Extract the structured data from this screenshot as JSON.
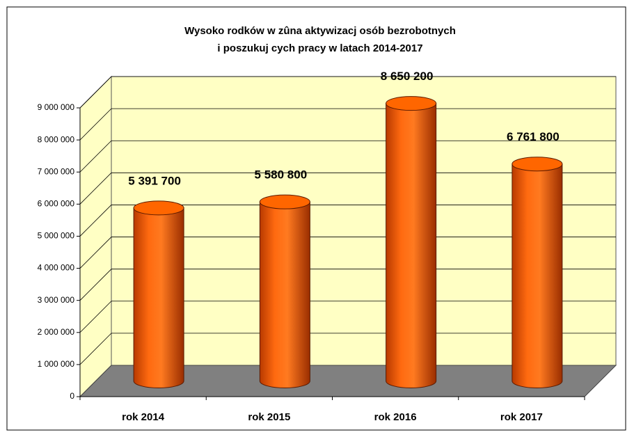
{
  "chart_data": {
    "type": "bar3d",
    "title": [
      "Wysoko       rodków w zûna aktywizacj   osób bezrobotnych",
      "i poszukuj  cych pracy w latach 2014-2017"
    ],
    "categories": [
      "rok 2014",
      "rok 2015",
      "rok 2016",
      "rok 2017"
    ],
    "values": [
      5391700,
      5580800,
      8650200,
      6761800
    ],
    "value_labels": [
      "5 391 700",
      "5 580 800",
      "8 650 200",
      "6 761 800"
    ],
    "color": "#ff6600",
    "ylim": [
      0,
      9000000
    ],
    "yticks": [
      0,
      {
        "value": 1000000,
        "label": "1 000 000"
      },
      {
        "value": 2000000,
        "label": "2 000 000"
      },
      {
        "value": 3000000,
        "label": "3 000 000"
      },
      {
        "value": 4000000,
        "label": "4 000 000"
      },
      {
        "value": 5000000,
        "label": "5 000 000"
      },
      {
        "value": 6000000,
        "label": "6 000 000"
      },
      {
        "value": 7000000,
        "label": "7 000 000"
      },
      {
        "value": 8000000,
        "label": "8 000 000"
      },
      {
        "value": 9000000,
        "label": "9 000 000"
      }
    ],
    "grid": true
  }
}
